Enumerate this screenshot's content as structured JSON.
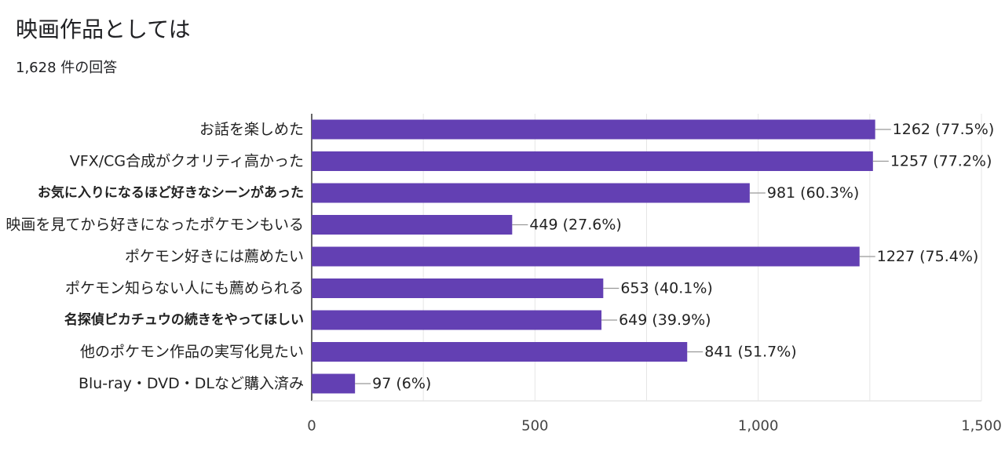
{
  "title": "映画作品としては",
  "subtitle": "1,628 件の回答",
  "colors": {
    "bar": "#6340b3",
    "grid": "#e6e6e6",
    "axis": "#333333",
    "connector": "#999999"
  },
  "chart_data": {
    "type": "bar",
    "orientation": "horizontal",
    "categories": [
      "お話を楽しめた",
      "VFX/CG合成がクオリティ高かった",
      "お気に入りになるほど好きなシーンがあった",
      "映画を見てから好きになったポケモンもいる",
      "ポケモン好きには薦めたい",
      "ポケモン知らない人にも薦められる",
      "名探偵ピカチュウの続きをやってほしい",
      "他のポケモン作品の実写化見たい",
      "Blu-ray・DVD・DLなど購入済み"
    ],
    "bold_categories": [
      "お気に入りになるほど好きなシーンがあった",
      "名探偵ピカチュウの続きをやってほしい"
    ],
    "values": [
      1262,
      1257,
      981,
      449,
      1227,
      653,
      649,
      841,
      97
    ],
    "value_labels": [
      "1262 (77.5%)",
      "1257 (77.2%)",
      "981 (60.3%)",
      "449 (27.6%)",
      "1227 (75.4%)",
      "653 (40.1%)",
      "649 (39.9%)",
      "841 (51.7%)",
      "97 (6%)"
    ],
    "xlim": [
      0,
      1500
    ],
    "ticks": [
      0,
      500,
      1000,
      1500
    ],
    "tick_labels": [
      "0",
      "500",
      "1,000",
      "1,500"
    ],
    "grid": true
  }
}
